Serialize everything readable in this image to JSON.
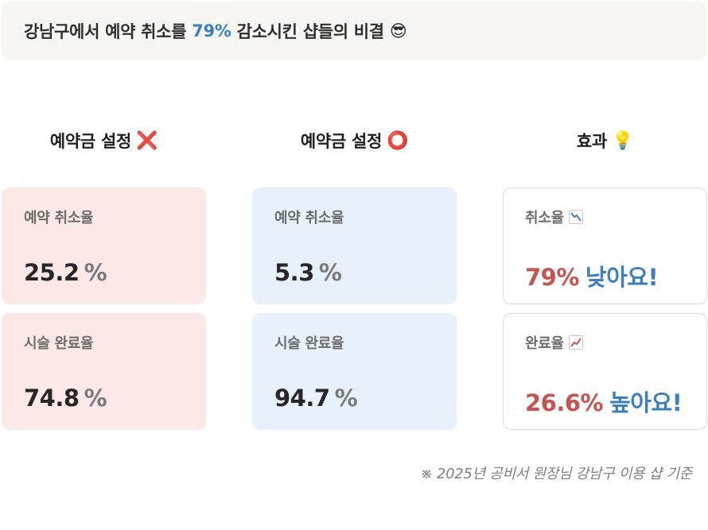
{
  "banner": {
    "prefix": "강남구에서 예약 취소를",
    "highlight": "79%",
    "suffix": "감소시킨 샵들의 비결",
    "emoji": "😎"
  },
  "columns": [
    {
      "title": "예약금 설정",
      "mark": "❌"
    },
    {
      "title": "예약금 설정",
      "mark": "⭕"
    },
    {
      "title": "효과",
      "mark": "💡"
    }
  ],
  "without_deposit": {
    "cancel": {
      "label": "예약 취소율",
      "value": "25.2",
      "unit": "%"
    },
    "complete": {
      "label": "시술 완료율",
      "value": "74.8",
      "unit": "%"
    }
  },
  "with_deposit": {
    "cancel": {
      "label": "예약 취소율",
      "value": "5.3",
      "unit": "%"
    },
    "complete": {
      "label": "시술 완료율",
      "value": "94.7",
      "unit": "%"
    }
  },
  "effect": {
    "cancel": {
      "label": "취소율",
      "icon": "chart-decreasing-icon",
      "number": "79%",
      "text": "낮아요!"
    },
    "complete": {
      "label": "완료율",
      "icon": "chart-increasing-icon",
      "number": "26.6%",
      "text": "높아요!"
    }
  },
  "footnote": "※ 2025년 공비서 원장님 강남구 이용 샵 기준",
  "colors": {
    "highlight_blue": "#3a7fc1",
    "effect_red": "#c9534f",
    "card_red_bg": "#fce9e7",
    "card_blue_bg": "#e6f1fb"
  }
}
